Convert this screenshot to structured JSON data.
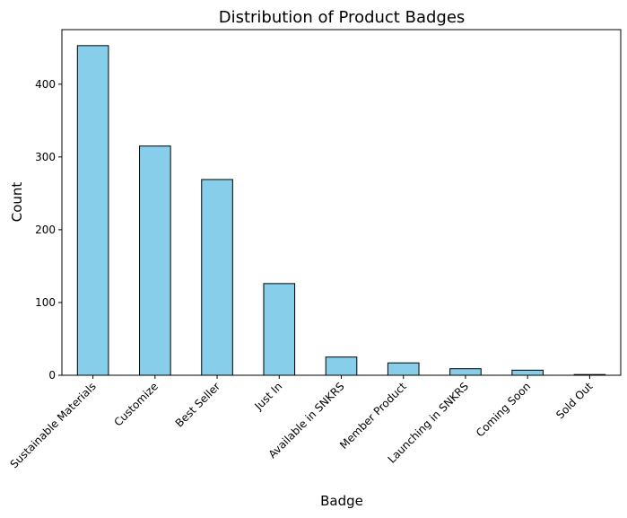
{
  "chart_data": {
    "type": "bar",
    "title": "Distribution of Product Badges",
    "xlabel": "Badge",
    "ylabel": "Count",
    "categories": [
      "Sustainable Materials",
      "Customize",
      "Best Seller",
      "Just In",
      "Available in SNKRS",
      "Member Product",
      "Launching in SNKRS",
      "Coming Soon",
      "Sold Out"
    ],
    "values": [
      453,
      315,
      269,
      126,
      25,
      17,
      9,
      7,
      1
    ],
    "ylim": [
      0,
      475
    ],
    "yticks": [
      0,
      100,
      200,
      300,
      400
    ],
    "bar_color": "#87ceeb",
    "edge_color": "#000000",
    "grid": false,
    "legend": "none"
  }
}
